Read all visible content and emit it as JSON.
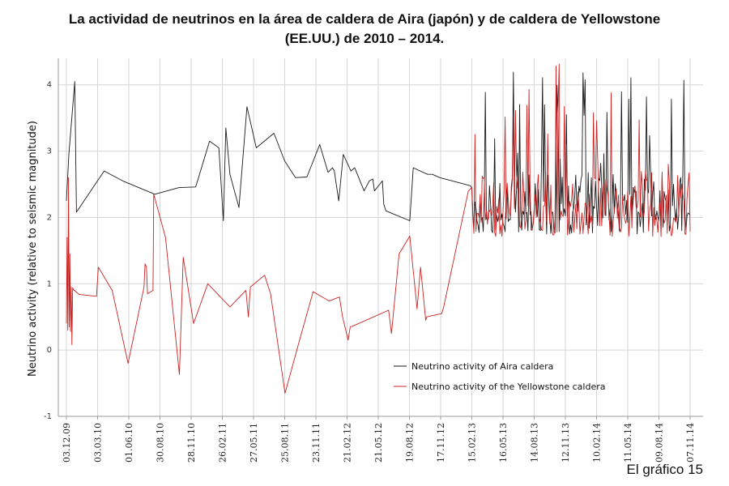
{
  "chart_data": {
    "type": "line",
    "title_line1": "La actividad de neutrinos en la área de caldera de Aira (japón)  y de caldera de Yellowstone",
    "title_line2": "(EE.UU.) de 2010 – 2014.",
    "ylabel": "Neutrino activity (relative to seismic magnitude)",
    "xlabel": "",
    "ylim": [
      -1,
      4.4
    ],
    "yticks": [
      "-1",
      "0",
      "1",
      "2",
      "3",
      "4"
    ],
    "xticks": [
      "03.12.09",
      "03.03.10",
      "01.06.10",
      "30.08.10",
      "28.11.10",
      "26.02.11",
      "27.05.11",
      "25.08.11",
      "23.11.11",
      "21.02.12",
      "21.05.12",
      "19.08.12",
      "17.11.12",
      "15.02.13",
      "16.05.13",
      "14.08.13",
      "12.11.13",
      "10.02.14",
      "11.05.14",
      "09.08.14",
      "07.11.14"
    ],
    "grid": true,
    "legend_position": "center-right",
    "footnote": "El gráfico 15",
    "series": [
      {
        "name": "Neutrino activity of Aira caldera",
        "color": "#1a1a1a",
        "x": [
          "2009-12-03",
          "2009-12-10",
          "2009-12-27",
          "2010-01-01",
          "2010-03-22",
          "2010-05-15",
          "2010-08-15",
          "2010-10-24",
          "2010-12-11",
          "2011-01-20",
          "2011-02-16",
          "2011-03-01",
          "2011-03-08",
          "2011-03-20",
          "2011-04-15",
          "2011-05-08",
          "2011-06-04",
          "2011-07-25",
          "2011-08-25",
          "2011-09-25",
          "2011-10-28",
          "2011-12-04",
          "2011-12-28",
          "2012-01-10",
          "2012-01-15",
          "2012-01-28",
          "2012-02-10",
          "2012-03-03",
          "2012-03-14",
          "2012-04-10",
          "2012-04-25",
          "2012-05-05",
          "2012-05-10",
          "2012-06-02",
          "2012-06-06",
          "2012-06-12",
          "2012-08-20",
          "2012-08-30",
          "2012-10-10",
          "2012-10-24",
          "2012-11-15",
          "2013-02-10",
          "2013-02-15"
        ],
        "values": [
          2.25,
          2.95,
          4.05,
          2.08,
          2.7,
          2.55,
          2.35,
          2.45,
          2.46,
          3.15,
          3.05,
          1.95,
          3.35,
          2.65,
          2.15,
          3.67,
          3.05,
          3.27,
          2.85,
          2.6,
          2.61,
          3.1,
          2.68,
          2.75,
          2.7,
          2.25,
          2.95,
          2.7,
          2.75,
          2.4,
          2.55,
          2.58,
          2.4,
          2.55,
          2.2,
          2.1,
          1.95,
          2.75,
          2.65,
          2.65,
          2.6,
          2.48,
          2.45
        ],
        "noisy_segment": {
          "x_start": "2013-02-15",
          "x_end": "2014-11-07",
          "baseline": 2.0,
          "min": 1.75,
          "max": 4.2
        }
      },
      {
        "name": "Neutrino activity of the Yellowstone caldera",
        "color": "#cc2222",
        "x": [
          "2009-12-03",
          "2009-12-05",
          "2009-12-07",
          "2009-12-09",
          "2009-12-11",
          "2009-12-13",
          "2009-12-15",
          "2009-12-17",
          "2009-12-19",
          "2009-12-21",
          "2009-12-23",
          "2009-12-26",
          "2010-01-08",
          "2010-02-28",
          "2010-03-05",
          "2010-04-14",
          "2010-05-30",
          "2010-07-15",
          "2010-07-18",
          "2010-07-22",
          "2010-07-25",
          "2010-08-10",
          "2010-08-12",
          "2010-09-15",
          "2010-10-25",
          "2010-11-05",
          "2010-12-05",
          "2011-01-15",
          "2011-03-20",
          "2011-05-05",
          "2011-05-12",
          "2011-05-18",
          "2011-06-28",
          "2011-07-15",
          "2011-08-26",
          "2011-10-08",
          "2011-11-15",
          "2011-12-31",
          "2012-01-30",
          "2012-02-08",
          "2012-02-24",
          "2012-03-01",
          "2012-03-08",
          "2012-06-20",
          "2012-06-28",
          "2012-07-20",
          "2012-08-20",
          "2012-09-10",
          "2012-09-20",
          "2012-10-05",
          "2012-10-08",
          "2012-11-20",
          "2012-11-26",
          "2013-02-05",
          "2013-02-15"
        ],
        "values": [
          0.4,
          1.7,
          0.3,
          2.6,
          0.35,
          1.45,
          0.28,
          0.95,
          0.08,
          0.94,
          0.91,
          0.9,
          0.84,
          0.81,
          1.25,
          0.9,
          -0.2,
          0.95,
          1.3,
          1.25,
          0.85,
          0.9,
          2.35,
          1.7,
          -0.37,
          1.4,
          0.4,
          1.0,
          0.65,
          0.9,
          0.5,
          0.95,
          1.13,
          0.85,
          -0.65,
          0.17,
          0.88,
          0.74,
          0.8,
          0.5,
          0.15,
          0.35,
          0.36,
          0.6,
          0.25,
          1.45,
          1.72,
          0.62,
          1.25,
          0.45,
          0.5,
          0.55,
          0.65,
          2.4,
          2.45
        ],
        "noisy_segment": {
          "x_start": "2013-02-15",
          "x_end": "2014-11-07",
          "baseline": 2.0,
          "min": 1.7,
          "max": 4.4
        }
      }
    ]
  }
}
